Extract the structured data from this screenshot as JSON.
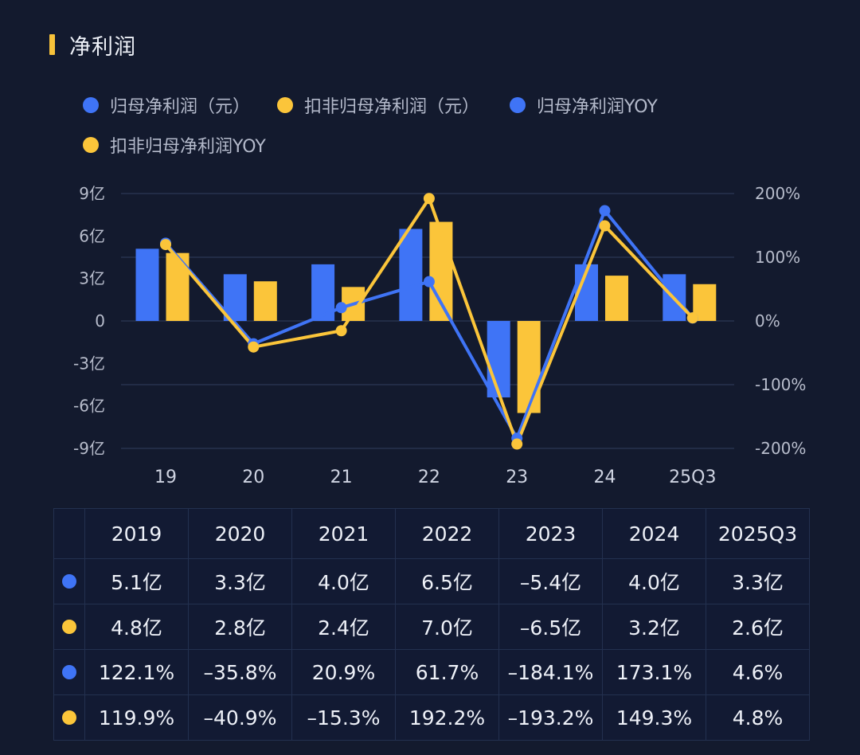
{
  "header": {
    "title": "净利润"
  },
  "colors": {
    "blue": "#3f74f6",
    "yellow": "#fbc53a",
    "accent": "#f7c23a",
    "background": "#131a2e",
    "grid": "#222c46"
  },
  "legend": [
    {
      "label": "归母净利润（元）",
      "color": "#3f74f6"
    },
    {
      "label": "扣非归母净利润（元）",
      "color": "#fbc53a"
    },
    {
      "label": "归母净利润YOY",
      "color": "#3f74f6"
    },
    {
      "label": "扣非归母净利润YOY",
      "color": "#fbc53a"
    }
  ],
  "chart_data": {
    "type": "bar+line",
    "title": "净利润",
    "categories": [
      "19",
      "20",
      "21",
      "22",
      "23",
      "24",
      "25Q3"
    ],
    "series": [
      {
        "name": "归母净利润（元）",
        "type": "bar",
        "axis": "left",
        "unit": "亿",
        "values": [
          5.1,
          3.3,
          4.0,
          6.5,
          -5.4,
          4.0,
          3.3
        ]
      },
      {
        "name": "扣非归母净利润（元）",
        "type": "bar",
        "axis": "left",
        "unit": "亿",
        "values": [
          4.8,
          2.8,
          2.4,
          7.0,
          -6.5,
          3.2,
          2.6
        ]
      },
      {
        "name": "归母净利润YOY",
        "type": "line",
        "axis": "right",
        "unit": "%",
        "values": [
          122.1,
          -35.8,
          20.9,
          61.7,
          -184.1,
          173.1,
          4.6
        ]
      },
      {
        "name": "扣非归母净利润YOY",
        "type": "line",
        "axis": "right",
        "unit": "%",
        "values": [
          119.9,
          -40.9,
          -15.3,
          192.2,
          -193.2,
          149.3,
          4.8
        ]
      }
    ],
    "left_axis": {
      "ylim": [
        -9,
        9
      ],
      "ticks": [
        9,
        6,
        3,
        0,
        -3,
        -6,
        -9
      ],
      "tick_labels": [
        "9亿",
        "6亿",
        "3亿",
        "0",
        "-3亿",
        "-6亿",
        "-9亿"
      ]
    },
    "right_axis": {
      "ylim": [
        -200,
        200
      ],
      "ticks": [
        200,
        100,
        0,
        -100,
        -200
      ],
      "tick_labels": [
        "200%",
        "100%",
        "0%",
        "-100%",
        "-200%"
      ]
    },
    "grid": true,
    "legend_position": "top-left"
  },
  "table": {
    "headers": [
      "2019",
      "2020",
      "2021",
      "2022",
      "2023",
      "2024",
      "2025Q3"
    ],
    "rows": [
      {
        "color": "#3f74f6",
        "cells": [
          "5.1亿",
          "3.3亿",
          "4.0亿",
          "6.5亿",
          "–5.4亿",
          "4.0亿",
          "3.3亿"
        ]
      },
      {
        "color": "#fbc53a",
        "cells": [
          "4.8亿",
          "2.8亿",
          "2.4亿",
          "7.0亿",
          "–6.5亿",
          "3.2亿",
          "2.6亿"
        ]
      },
      {
        "color": "#3f74f6",
        "cells": [
          "122.1%",
          "–35.8%",
          "20.9%",
          "61.7%",
          "–184.1%",
          "173.1%",
          "4.6%"
        ]
      },
      {
        "color": "#fbc53a",
        "cells": [
          "119.9%",
          "–40.9%",
          "–15.3%",
          "192.2%",
          "–193.2%",
          "149.3%",
          "4.8%"
        ]
      }
    ]
  }
}
